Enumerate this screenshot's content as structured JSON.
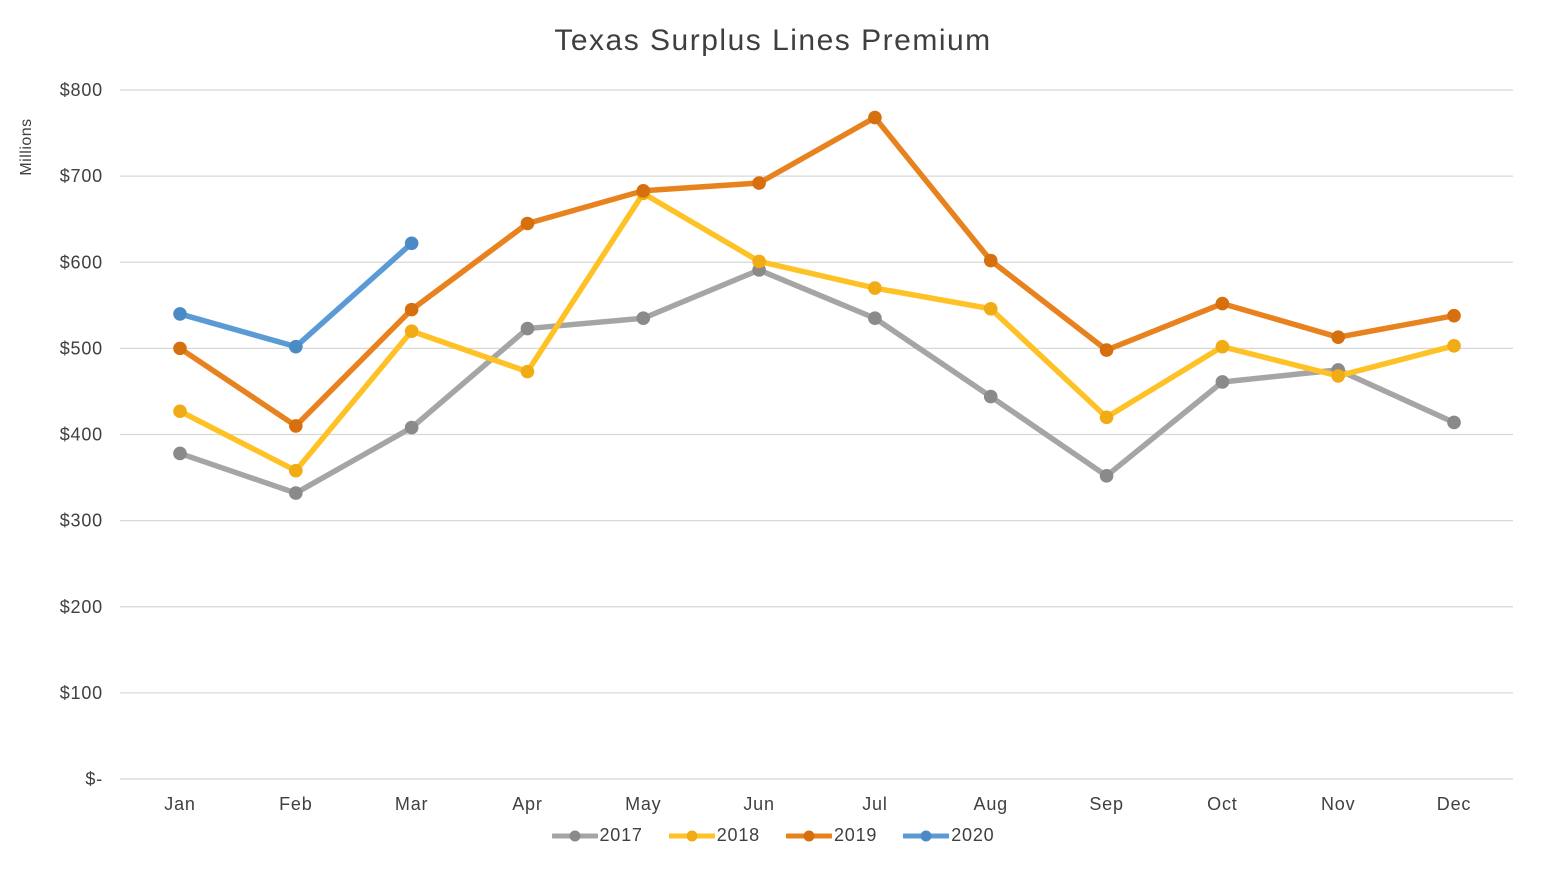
{
  "title": "Texas Surplus Lines Premium",
  "chart_data": {
    "type": "line",
    "title": "Texas Surplus Lines Premium",
    "xlabel": "",
    "ylabel": "Millions",
    "categories": [
      "Jan",
      "Feb",
      "Mar",
      "Apr",
      "May",
      "Jun",
      "Jul",
      "Aug",
      "Sep",
      "Oct",
      "Nov",
      "Dec"
    ],
    "ylim": [
      0,
      800
    ],
    "y_tick_values": [
      0,
      100,
      200,
      300,
      400,
      500,
      600,
      700,
      800
    ],
    "y_tick_labels": [
      "$-",
      "$100",
      "$200",
      "$300",
      "$400",
      "$500",
      "$600",
      "$700",
      "$800"
    ],
    "grid": true,
    "legend_position": "bottom",
    "series": [
      {
        "name": "2017",
        "color": "#a5a5a5",
        "marker_color": "#8a8a8a",
        "values": [
          378,
          332,
          408,
          523,
          535,
          591,
          535,
          444,
          352,
          461,
          475,
          414
        ]
      },
      {
        "name": "2018",
        "color": "#ffc226",
        "marker_color": "#f0ab15",
        "values": [
          427,
          358,
          520,
          473,
          680,
          601,
          570,
          546,
          420,
          502,
          468,
          503
        ]
      },
      {
        "name": "2019",
        "color": "#e8821e",
        "marker_color": "#d66f0e",
        "values": [
          500,
          410,
          545,
          645,
          683,
          692,
          768,
          602,
          498,
          552,
          513,
          538
        ]
      },
      {
        "name": "2020",
        "color": "#5b9bd5",
        "marker_color": "#4b8bc5",
        "values": [
          540,
          502,
          622
        ]
      }
    ]
  },
  "colors": {
    "gridline": "#d8d8d8",
    "text": "#404040",
    "title_text": "#3f3f3f"
  }
}
